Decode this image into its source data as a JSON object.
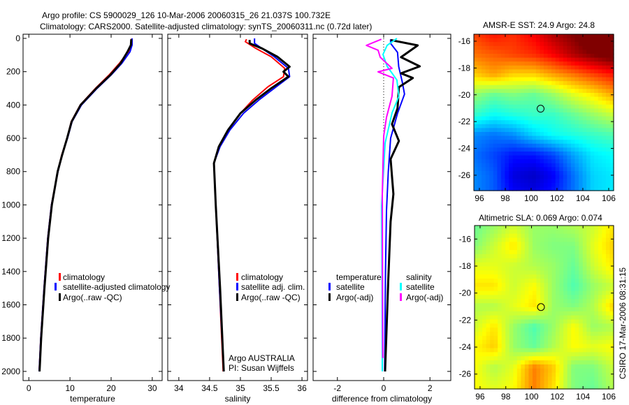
{
  "title": {
    "line1": "Argo profile: CS 5900029_126 10-Mar-2006 20060315_26 21.037S 100.732E",
    "line2": "Climatology: CARS2000. Satellite-adjusted climatology: synTS_20060311.nc (0.72d later)"
  },
  "credit": "CSIRO 17-Mar-2006 08:31:15",
  "colors": {
    "climatology": "#ff0000",
    "satellite": "#0000ff",
    "argo": "#000000",
    "sal_satellite": "#00ffff",
    "sal_argo": "#ff00ff"
  },
  "chart_data": [
    {
      "type": "line",
      "id": "temperature",
      "xlabel": "temperature",
      "xlim": [
        -1.4,
        32.4
      ],
      "xticks": [
        0,
        10,
        20,
        30
      ],
      "ylim": [
        -25,
        2055
      ],
      "yticks": [
        0,
        200,
        400,
        600,
        800,
        1000,
        1200,
        1400,
        1600,
        1800,
        2000
      ],
      "legend": [
        "climatology",
        "satellite-adjusted climatology",
        "Argo(..raw -QC)"
      ],
      "series": [
        {
          "name": "climatology",
          "color": "#ff0000",
          "points": [
            [
              25,
              0
            ],
            [
              25,
              40
            ],
            [
              24.2,
              80
            ],
            [
              22,
              150
            ],
            [
              19.5,
              220
            ],
            [
              16.2,
              300
            ],
            [
              12.5,
              400
            ],
            [
              10.3,
              500
            ],
            [
              9.3,
              600
            ],
            [
              8.0,
              700
            ],
            [
              7.0,
              800
            ],
            [
              5.5,
              1000
            ],
            [
              4.6,
              1200
            ],
            [
              3.7,
              1500
            ],
            [
              2.9,
              1800
            ],
            [
              2.5,
              2000
            ]
          ]
        },
        {
          "name": "satellite-adjusted climatology",
          "color": "#0000ff",
          "points": [
            [
              25.1,
              0
            ],
            [
              25.1,
              40
            ],
            [
              24.6,
              80
            ],
            [
              22.6,
              150
            ],
            [
              20.0,
              220
            ],
            [
              16.6,
              300
            ],
            [
              12.8,
              400
            ],
            [
              10.5,
              500
            ],
            [
              9.4,
              600
            ],
            [
              8.1,
              700
            ],
            [
              7.1,
              800
            ],
            [
              5.5,
              1000
            ],
            [
              4.6,
              1200
            ],
            [
              3.7,
              1500
            ],
            [
              2.9,
              1800
            ],
            [
              2.5,
              2000
            ]
          ]
        },
        {
          "name": "Argo(..raw -QC)",
          "color": "#000000",
          "points": [
            [
              24.9,
              5
            ],
            [
              24.8,
              40
            ],
            [
              24.0,
              80
            ],
            [
              22.3,
              150
            ],
            [
              19.8,
              220
            ],
            [
              16.4,
              300
            ],
            [
              12.6,
              400
            ],
            [
              10.4,
              500
            ],
            [
              9.3,
              600
            ],
            [
              8.1,
              700
            ],
            [
              7.0,
              800
            ],
            [
              5.6,
              1000
            ],
            [
              4.7,
              1200
            ],
            [
              3.8,
              1500
            ],
            [
              3.0,
              1800
            ],
            [
              2.6,
              2000
            ]
          ]
        }
      ]
    },
    {
      "type": "line",
      "id": "salinity",
      "xlabel": "salinity",
      "xlim": [
        33.82,
        36.09
      ],
      "xticks": [
        34,
        34.5,
        35,
        35.5,
        36
      ],
      "ylim": [
        -25,
        2055
      ],
      "legend": [
        "climatology",
        "satellite adj. clim.",
        "Argo(..raw -QC)"
      ],
      "annotation": [
        "Argo AUSTRALIA",
        "PI: Susan Wijffels"
      ],
      "series": [
        {
          "name": "climatology",
          "color": "#ff0000",
          "points": [
            [
              35.1,
              5
            ],
            [
              35.08,
              20
            ],
            [
              35.25,
              60
            ],
            [
              35.5,
              110
            ],
            [
              35.72,
              180
            ],
            [
              35.7,
              230
            ],
            [
              35.45,
              290
            ],
            [
              35.2,
              370
            ],
            [
              35.0,
              450
            ],
            [
              34.8,
              550
            ],
            [
              34.65,
              650
            ],
            [
              34.57,
              750
            ],
            [
              34.6,
              1000
            ],
            [
              34.66,
              1500
            ],
            [
              34.72,
              2000
            ]
          ]
        },
        {
          "name": "satellite adj. clim.",
          "color": "#0000ff",
          "points": [
            [
              35.23,
              0
            ],
            [
              35.23,
              30
            ],
            [
              35.35,
              60
            ],
            [
              35.55,
              110
            ],
            [
              35.78,
              180
            ],
            [
              35.8,
              230
            ],
            [
              35.55,
              300
            ],
            [
              35.3,
              370
            ],
            [
              35.05,
              450
            ],
            [
              34.83,
              550
            ],
            [
              34.67,
              650
            ],
            [
              34.57,
              750
            ],
            [
              34.6,
              1000
            ],
            [
              34.66,
              1500
            ],
            [
              34.73,
              2000
            ]
          ]
        },
        {
          "name": "Argo(..raw -QC)",
          "color": "#000000",
          "points": [
            [
              35.15,
              10
            ],
            [
              35.15,
              30
            ],
            [
              35.35,
              60
            ],
            [
              35.6,
              110
            ],
            [
              35.8,
              170
            ],
            [
              35.7,
              200
            ],
            [
              35.78,
              230
            ],
            [
              35.5,
              300
            ],
            [
              35.25,
              370
            ],
            [
              35.0,
              450
            ],
            [
              34.8,
              550
            ],
            [
              34.65,
              650
            ],
            [
              34.57,
              750
            ],
            [
              34.6,
              1000
            ],
            [
              34.67,
              1500
            ],
            [
              34.73,
              2000
            ]
          ]
        }
      ]
    },
    {
      "type": "line",
      "id": "difference",
      "xlabel": "difference from climatology",
      "xlim": [
        -3.05,
        2.9
      ],
      "xticks": [
        -2,
        0,
        2
      ],
      "ylim": [
        -25,
        2055
      ],
      "legend_temperature": {
        "title": "temperature",
        "items": [
          "satellite",
          "Argo(-adj)"
        ]
      },
      "legend_salinity": {
        "title": "salinity",
        "items": [
          "satellite",
          "Argo(-adj)"
        ]
      },
      "series": [
        {
          "name": "temperature satellite",
          "color": "#0000ff",
          "points": [
            [
              0.3,
              5
            ],
            [
              0.3,
              30
            ],
            [
              0.6,
              84
            ],
            [
              0.65,
              170
            ],
            [
              0.8,
              260
            ],
            [
              0.9,
              335
            ],
            [
              0.6,
              450
            ],
            [
              0.3,
              600
            ],
            [
              0.2,
              800
            ],
            [
              0.12,
              1035
            ],
            [
              0.08,
              1400
            ],
            [
              0.04,
              2000
            ]
          ]
        },
        {
          "name": "temperature Argo(-adj)",
          "color": "#000000",
          "points": [
            [
              0.3,
              10
            ],
            [
              1.47,
              42
            ],
            [
              0.75,
              113
            ],
            [
              1.56,
              168
            ],
            [
              0.75,
              210
            ],
            [
              1.26,
              238
            ],
            [
              0.66,
              293
            ],
            [
              0.6,
              420
            ],
            [
              0.36,
              515
            ],
            [
              0.66,
              616
            ],
            [
              0.3,
              725
            ],
            [
              0.42,
              935
            ],
            [
              0.3,
              1100
            ],
            [
              0.2,
              1446
            ],
            [
              0.06,
              2000
            ]
          ]
        },
        {
          "name": "salinity satellite",
          "color": "#00ffff",
          "points": [
            [
              0.57,
              0
            ],
            [
              0.15,
              42
            ],
            [
              -0.03,
              96
            ],
            [
              0.15,
              168
            ],
            [
              0.57,
              250
            ],
            [
              0.66,
              348
            ],
            [
              0.36,
              448
            ],
            [
              0.06,
              630
            ],
            [
              -0.09,
              1006
            ],
            [
              -0.07,
              1500
            ],
            [
              -0.06,
              2000
            ]
          ]
        },
        {
          "name": "salinity Argo(-adj)",
          "color": "#ff00ff",
          "points": [
            [
              -0.1,
              5
            ],
            [
              -0.75,
              42
            ],
            [
              -0.24,
              71
            ],
            [
              -0.15,
              113
            ],
            [
              0.36,
              180
            ],
            [
              -0.24,
              201
            ],
            [
              0.42,
              238
            ],
            [
              0.36,
              348
            ],
            [
              0.12,
              474
            ],
            [
              0,
              587
            ],
            [
              -0.06,
              935
            ],
            [
              -0.05,
              1500
            ],
            [
              -0.04,
              1920
            ]
          ]
        }
      ]
    },
    {
      "type": "heatmap",
      "id": "sst",
      "title": "AMSR-E SST: 24.9 Argo: 24.8",
      "xlim": [
        95.57,
        106.38
      ],
      "ylim": [
        -27.15,
        -15.48
      ],
      "xticks": [
        96,
        98,
        100,
        102,
        104,
        106
      ],
      "yticks": [
        -16,
        -18,
        -20,
        -22,
        -24,
        -26
      ],
      "clim": [
        22.8,
        27.0
      ],
      "float_position": [
        100.732,
        -21.037
      ],
      "grid_lons": [
        95.5,
        97.1,
        98.6,
        100.2,
        101.7,
        103.3,
        104.8,
        106.4
      ],
      "grid_lats": [
        -15.5,
        -17.0,
        -18.5,
        -20.0,
        -21.5,
        -23.0,
        -24.5,
        -26.0,
        -27.2
      ],
      "values": [
        [
          26.2,
          26.4,
          26.3,
          26.5,
          26.8,
          27.0,
          27.3,
          27.6
        ],
        [
          26.0,
          26.1,
          26.2,
          26.3,
          26.5,
          26.8,
          27.0,
          27.2
        ],
        [
          25.6,
          25.8,
          25.6,
          25.6,
          25.8,
          26.0,
          26.2,
          26.4
        ],
        [
          25.0,
          24.8,
          24.9,
          24.8,
          25.0,
          25.3,
          25.5,
          25.8
        ],
        [
          24.6,
          24.4,
          24.5,
          24.6,
          24.6,
          24.8,
          25.0,
          25.2
        ],
        [
          23.9,
          23.8,
          23.9,
          24.2,
          24.4,
          24.5,
          24.6,
          24.7
        ],
        [
          23.8,
          23.6,
          23.4,
          23.4,
          23.6,
          24.0,
          24.3,
          24.4
        ],
        [
          23.9,
          23.7,
          23.2,
          23.1,
          23.3,
          23.8,
          24.2,
          24.3
        ],
        [
          23.9,
          23.7,
          23.3,
          23.2,
          23.4,
          23.8,
          24.2,
          24.3
        ]
      ]
    },
    {
      "type": "heatmap",
      "id": "sla",
      "title": "Altimetric SLA: 0.069 Argo: 0.074",
      "xlim": [
        95.57,
        106.38
      ],
      "ylim": [
        -27.1,
        -15.0
      ],
      "xticks": [
        96,
        98,
        100,
        102,
        104,
        106
      ],
      "yticks": [
        -16,
        -18,
        -20,
        -22,
        -24,
        -26
      ],
      "clim": [
        -0.15,
        0.25
      ],
      "float_position": [
        100.732,
        -21.037
      ],
      "grid_lons": [
        95.5,
        97.1,
        98.6,
        100.2,
        101.7,
        103.3,
        104.8,
        106.4
      ],
      "grid_lats": [
        -15.0,
        -16.5,
        -18.0,
        -19.5,
        -21.0,
        -22.5,
        -24.0,
        -25.5,
        -27.2
      ],
      "values": [
        [
          0.04,
          0.06,
          0.08,
          0.06,
          0.06,
          0.07,
          0.08,
          0.11
        ],
        [
          0.05,
          0.08,
          0.11,
          0.06,
          0.05,
          0.05,
          0.09,
          0.12
        ],
        [
          0.09,
          0.09,
          0.08,
          0.07,
          0.06,
          0.04,
          0.08,
          0.11
        ],
        [
          0.11,
          0.11,
          0.08,
          0.1,
          0.06,
          0.03,
          0.06,
          0.08
        ],
        [
          0.07,
          0.07,
          0.09,
          0.11,
          0.06,
          0.05,
          0.07,
          0.12
        ],
        [
          0.08,
          0.11,
          0.06,
          0.03,
          0.06,
          0.1,
          0.06,
          0.07
        ],
        [
          0.1,
          0.12,
          0.06,
          0.04,
          0.07,
          0.1,
          0.09,
          0.1
        ],
        [
          0.1,
          0.07,
          0.09,
          0.15,
          0.12,
          0.05,
          0.05,
          0.08
        ],
        [
          0.1,
          0.09,
          0.1,
          0.15,
          0.11,
          0.05,
          0.04,
          0.07
        ]
      ]
    }
  ]
}
